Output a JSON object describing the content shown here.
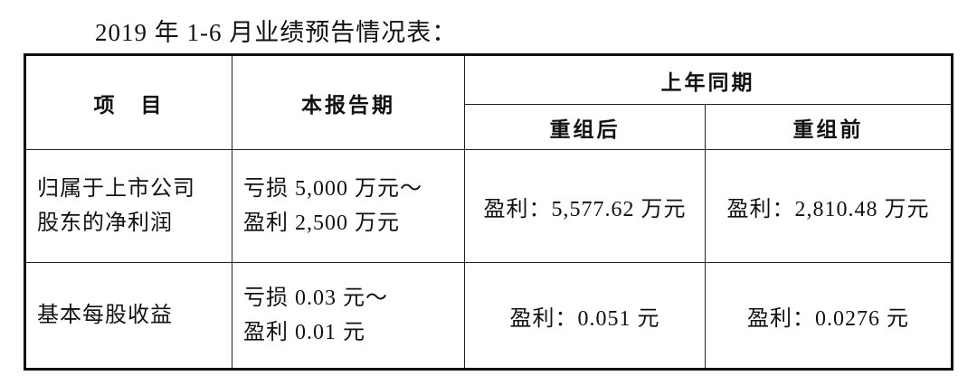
{
  "title": "2019 年 1-6 月业绩预告情况表：",
  "table": {
    "headers": {
      "item": "项　目",
      "current": "本报告期",
      "prior_year": "上年同期",
      "after_reorg": "重组后",
      "before_reorg": "重组前"
    },
    "rows": [
      {
        "item_line1": "归属于上市公司",
        "item_line2": "股东的净利润",
        "current_line1": "亏损 5,000 万元～",
        "current_line2": "盈利 2,500 万元",
        "after_reorg": "盈利：5,577.62 万元",
        "before_reorg": "盈利：2,810.48 万元"
      },
      {
        "item_line1": "基本每股收益",
        "current_line1": "亏损 0.03 元～",
        "current_line2": "盈利 0.01 元",
        "after_reorg": "盈利：0.051 元",
        "before_reorg": "盈利：0.0276 元"
      }
    ]
  }
}
